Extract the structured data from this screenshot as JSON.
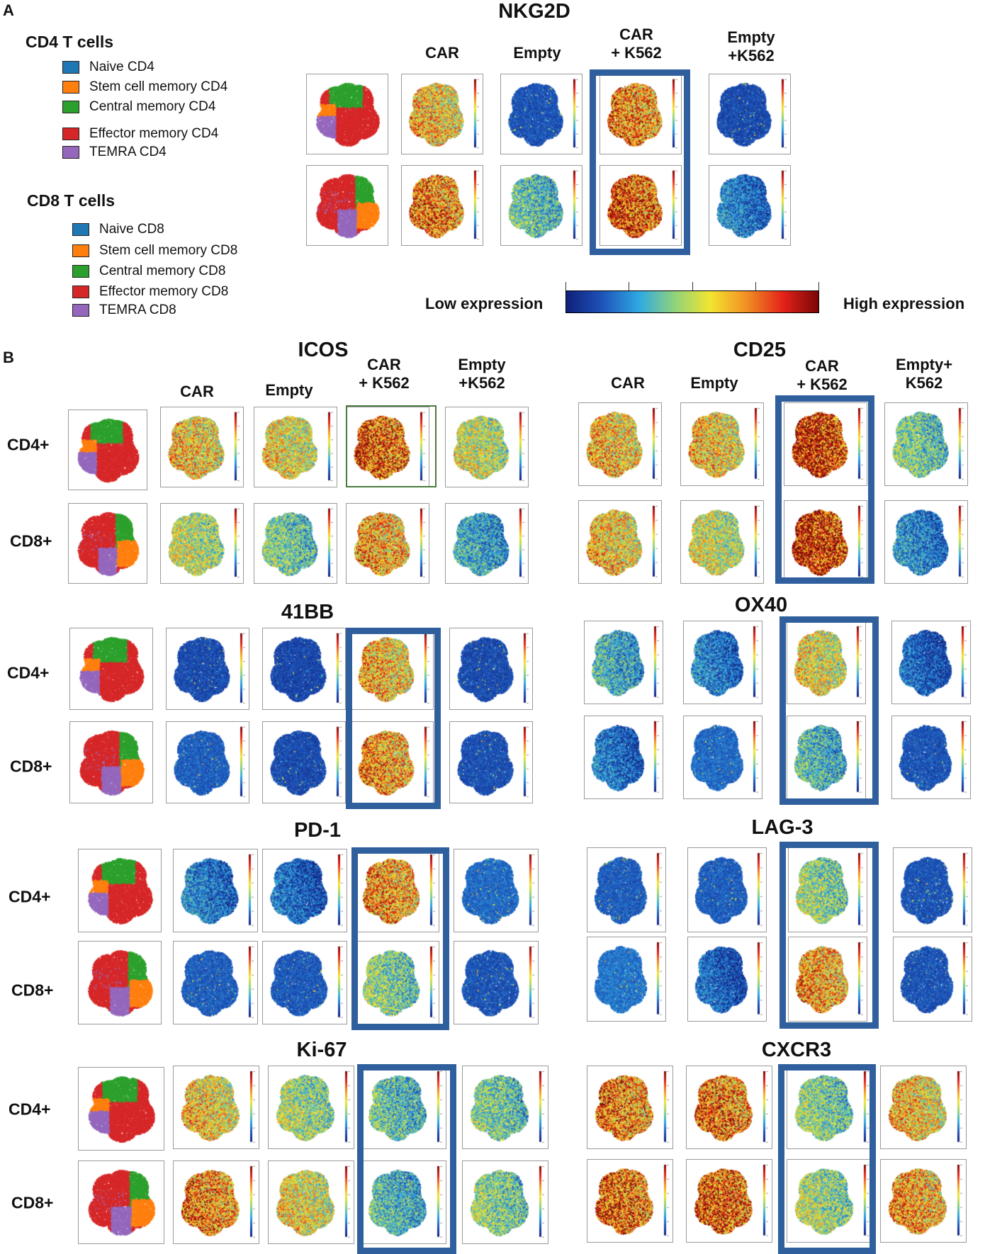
{
  "panel_a": {
    "letter": "A",
    "marker": "NKG2D",
    "column_headers": [
      "CAR",
      "Empty",
      "CAR\n+ K562",
      "Empty\n+K562"
    ],
    "legend_cd4": {
      "title": "CD4 T cells",
      "items": [
        {
          "label": "Naive CD4",
          "color": "#1f77b4"
        },
        {
          "label": "Stem cell memory CD4",
          "color": "#ff7f0e"
        },
        {
          "label": "Central memory CD4",
          "color": "#2ca02c"
        },
        {
          "label": "Effector memory CD4",
          "color": "#d62728"
        },
        {
          "label": "TEMRA CD4",
          "color": "#9467bd"
        }
      ]
    },
    "legend_cd8": {
      "title": "CD8 T cells",
      "items": [
        {
          "label": "Naive CD8",
          "color": "#1f77b4"
        },
        {
          "label": "Stem cell memory CD8",
          "color": "#ff7f0e"
        },
        {
          "label": "Central memory CD8",
          "color": "#2ca02c"
        },
        {
          "label": "Effector memory CD8",
          "color": "#d62728"
        },
        {
          "label": "TEMRA CD8",
          "color": "#9467bd"
        }
      ]
    },
    "scale": {
      "low_label": "Low expression",
      "high_label": "High expression",
      "colormap": [
        "#10207a",
        "#1d52b8",
        "#2fa9e3",
        "#8fd37a",
        "#f2e530",
        "#f29323",
        "#e32219",
        "#7a0606"
      ]
    }
  },
  "panel_b": {
    "letter": "B",
    "row_labels": [
      "CD4+",
      "CD8+"
    ],
    "columns": [
      "CAR",
      "Empty",
      "CAR + K562",
      "Empty + K562"
    ],
    "markers": [
      {
        "name": "ICOS",
        "headers": [
          "CAR",
          "Empty",
          "CAR\n+ K562",
          "Empty\n+K562"
        ]
      },
      {
        "name": "CD25",
        "headers": [
          "CAR",
          "Empty",
          "CAR\n+ K562",
          "Empty+\nK562"
        ]
      },
      {
        "name": "41BB"
      },
      {
        "name": "OX40"
      },
      {
        "name": "PD-1"
      },
      {
        "name": "LAG-3"
      },
      {
        "name": "Ki-67"
      },
      {
        "name": "CXCR3"
      }
    ]
  },
  "population_colors": {
    "naive": "#1f77b4",
    "stem_cell_memory": "#ff7f0e",
    "central_memory": "#2ca02c",
    "effector_memory": "#d62728",
    "temra": "#9467bd"
  },
  "expression_levels": {
    "description_keys": [
      "CD4+ CAR",
      "CD4+ Empty",
      "CD4+ CAR+K562",
      "CD4+ Empty+K562",
      "CD8+ CAR",
      "CD8+ Empty",
      "CD8+ CAR+K562",
      "CD8+ Empty+K562"
    ],
    "NKG2D": [
      0.6,
      0.08,
      0.7,
      0.06,
      0.72,
      0.35,
      0.8,
      0.2
    ],
    "ICOS": [
      0.6,
      0.55,
      0.78,
      0.5,
      0.48,
      0.38,
      0.66,
      0.28
    ],
    "CD25": [
      0.62,
      0.6,
      0.86,
      0.38,
      0.6,
      0.5,
      0.88,
      0.22
    ],
    "41BB": [
      0.06,
      0.05,
      0.62,
      0.06,
      0.1,
      0.06,
      0.68,
      0.07
    ],
    "OX40": [
      0.3,
      0.2,
      0.55,
      0.15,
      0.18,
      0.12,
      0.32,
      0.08
    ],
    "PD-1": [
      0.2,
      0.16,
      0.68,
      0.12,
      0.1,
      0.09,
      0.4,
      0.08
    ],
    "LAG-3": [
      0.1,
      0.1,
      0.42,
      0.08,
      0.14,
      0.15,
      0.66,
      0.08
    ],
    "Ki-67": [
      0.58,
      0.45,
      0.35,
      0.38,
      0.7,
      0.55,
      0.32,
      0.4
    ],
    "CXCR3": [
      0.72,
      0.74,
      0.4,
      0.6,
      0.76,
      0.78,
      0.45,
      0.66
    ]
  }
}
